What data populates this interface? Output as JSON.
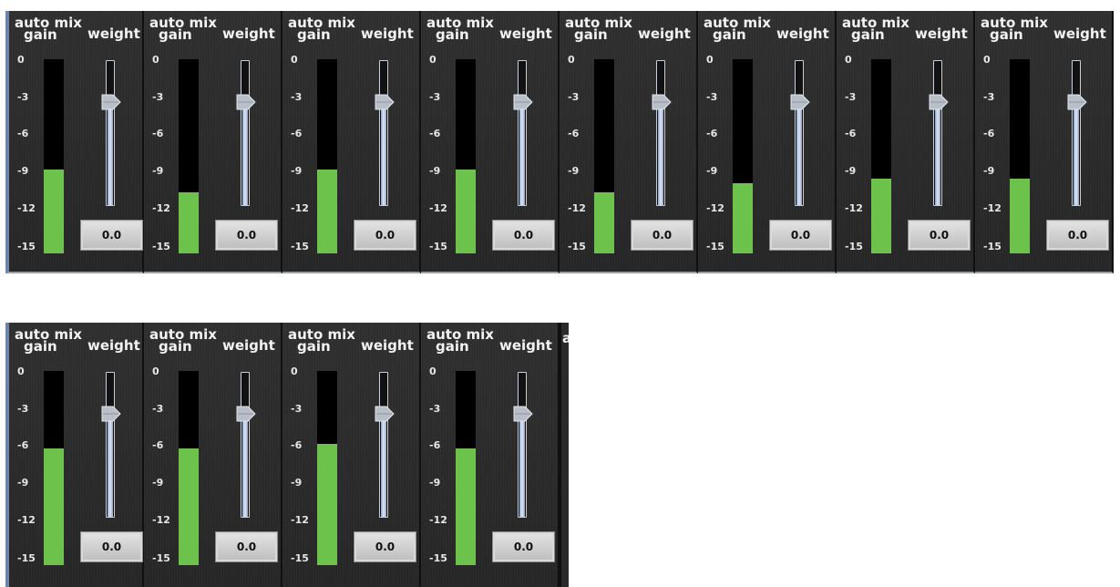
{
  "labels": {
    "gain_line1": "auto mix",
    "gain_line2": "gain",
    "weight": "weight"
  },
  "scale_ticks": [
    "0",
    "-3",
    "-6",
    "-9",
    "-12",
    "-15"
  ],
  "scale_min_db": -15,
  "scale_max_db": 0,
  "colors": {
    "meter": "#6cc24a",
    "meter_bg": "#000000",
    "strip_bg": "#2a2a2a",
    "fader": "#c9d6ec"
  },
  "rows": [
    {
      "channels": [
        {
          "gain_db": -8.5,
          "weight_value": "0.0",
          "weight_level": 0.72
        },
        {
          "gain_db": -10.3,
          "weight_value": "0.0",
          "weight_level": 0.72
        },
        {
          "gain_db": -8.5,
          "weight_value": "0.0",
          "weight_level": 0.72
        },
        {
          "gain_db": -8.5,
          "weight_value": "0.0",
          "weight_level": 0.72
        },
        {
          "gain_db": -10.3,
          "weight_value": "0.0",
          "weight_level": 0.72
        },
        {
          "gain_db": -9.6,
          "weight_value": "0.0",
          "weight_level": 0.72
        },
        {
          "gain_db": -9.2,
          "weight_value": "0.0",
          "weight_level": 0.72
        },
        {
          "gain_db": -9.2,
          "weight_value": "0.0",
          "weight_level": 0.72
        }
      ]
    },
    {
      "channels": [
        {
          "gain_db": -6.0,
          "weight_value": "0.0",
          "weight_level": 0.72
        },
        {
          "gain_db": -6.0,
          "weight_value": "0.0",
          "weight_level": 0.72
        },
        {
          "gain_db": -5.6,
          "weight_value": "0.0",
          "weight_level": 0.72
        },
        {
          "gain_db": -6.0,
          "weight_value": "0.0",
          "weight_level": 0.72
        }
      ],
      "partial_label": "a"
    }
  ]
}
